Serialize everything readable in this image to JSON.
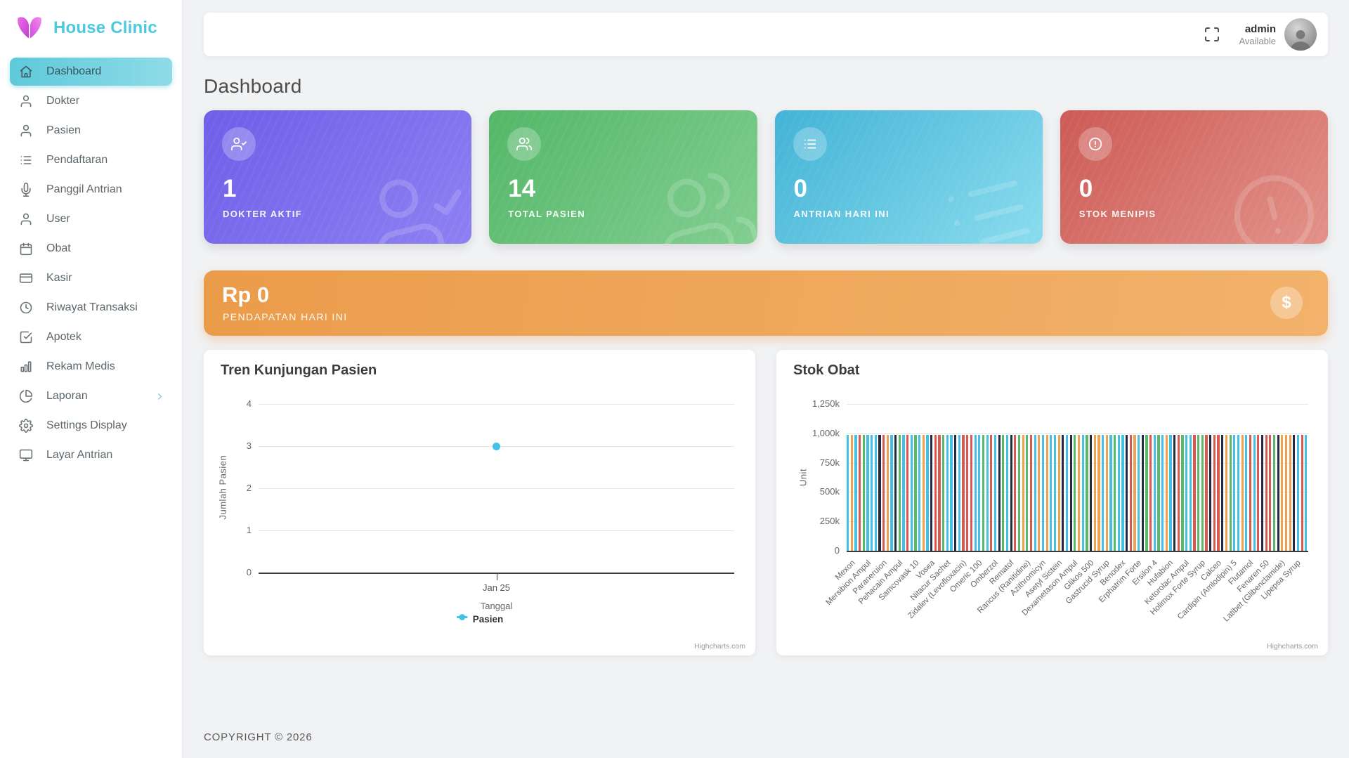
{
  "brand": {
    "name": "House Clinic",
    "accent": "#4cc9dc",
    "logo_colors": [
      "#f06ae4",
      "#bd3fd6"
    ]
  },
  "sidebar": {
    "items": [
      {
        "label": "Dashboard",
        "icon": "home",
        "active": true
      },
      {
        "label": "Dokter",
        "icon": "user"
      },
      {
        "label": "Pasien",
        "icon": "user"
      },
      {
        "label": "Pendaftaran",
        "icon": "list"
      },
      {
        "label": "Panggil Antrian",
        "icon": "mic"
      },
      {
        "label": "User",
        "icon": "user"
      },
      {
        "label": "Obat",
        "icon": "calendar"
      },
      {
        "label": "Kasir",
        "icon": "credit-card"
      },
      {
        "label": "Riwayat Transaksi",
        "icon": "clock"
      },
      {
        "label": "Apotek",
        "icon": "check-square"
      },
      {
        "label": "Rekam Medis",
        "icon": "bar-chart"
      },
      {
        "label": "Laporan",
        "icon": "pie-chart",
        "has_submenu": true
      },
      {
        "label": "Settings Display",
        "icon": "settings"
      },
      {
        "label": "Layar Antrian",
        "icon": "monitor"
      }
    ]
  },
  "topbar": {
    "user_name": "admin",
    "user_status": "Available"
  },
  "page": {
    "title": "Dashboard",
    "footer": "COPYRIGHT © 2026"
  },
  "stat_cards": [
    {
      "value": "1",
      "label": "DOKTER AKTIF",
      "icon": "user-check",
      "color_from": "#6d5fe8",
      "color_to": "#8e80f2"
    },
    {
      "value": "14",
      "label": "TOTAL PASIEN",
      "icon": "users",
      "color_from": "#53b768",
      "color_to": "#82ce90"
    },
    {
      "value": "0",
      "label": "ANTRIAN HARI INI",
      "icon": "list",
      "color_from": "#43b3d6",
      "color_to": "#8adcee"
    },
    {
      "value": "0",
      "label": "STOK MENIPIS",
      "icon": "alert-circle",
      "color_from": "#cd5a55",
      "color_to": "#e29289"
    }
  ],
  "revenue_banner": {
    "value": "Rp 0",
    "label": "PENDAPATAN HARI INI",
    "symbol": "$"
  },
  "chart_data": [
    {
      "type": "line",
      "title": "Tren Kunjungan Pasien",
      "xlabel": "Tanggal",
      "ylabel": "Jumlah Pasien",
      "x": [
        "Jan 25"
      ],
      "series": [
        {
          "name": "Pasien",
          "values": [
            3
          ],
          "color": "#45c1e8"
        }
      ],
      "ylim": [
        0,
        4
      ],
      "yticks": [
        0,
        1,
        2,
        3,
        4
      ],
      "grid": true,
      "legend_position": "bottom-center",
      "credits": "Highcharts.com"
    },
    {
      "type": "bar",
      "title": "Stok Obat",
      "xlabel": "",
      "ylabel": "Unit",
      "categories": [
        "Mexon",
        "Mersibion Ampul",
        "Paraneruion",
        "Pehacain Ampul",
        "Samcovask 10",
        "Vosea",
        "Nitacur Sachet",
        "Zidalev (Levofloxacin)",
        "Omeric 100",
        "Omberzol",
        "Rematof",
        "Rancus (Ranitidine)",
        "Azithromicyn",
        "Asetyl Sistein",
        "Dexametason Ampul",
        "Glikos 500",
        "Gastrucid Syrup",
        "Benodex",
        "Erphatrim Forte",
        "Ersilon 4",
        "Hufabion",
        "Ketorolac Ampul",
        "Holimox Forte Syrup",
        "Calceo",
        "Cardipin (Amlodipin) 5",
        "Flutamol",
        "Fenaren 50",
        "Latibet (Glibenclamide)",
        "Lipepsa Syrup"
      ],
      "values": [
        1000000,
        1000000,
        1000000,
        1000000,
        1000000,
        1000000,
        1000000,
        1000000,
        1000000,
        1000000,
        1000000,
        1000000,
        1000000,
        1000000,
        1000000,
        1000000,
        1000000,
        1000000,
        1000000,
        1000000,
        1000000,
        1000000,
        1000000,
        1000000,
        1000000,
        1000000,
        1000000,
        1000000,
        1000000
      ],
      "ylim": [
        0,
        1250000
      ],
      "ytick_labels": [
        "0",
        "250k",
        "500k",
        "750k",
        "1,000k",
        "1,250k"
      ],
      "bars_rendered": 116,
      "label_every_nth_bar": 4,
      "palette": [
        "#45bfe3",
        "#f0a14f",
        "#d95850",
        "#57b969",
        "#232a42"
      ],
      "grid": true,
      "credits": "Highcharts.com"
    }
  ]
}
